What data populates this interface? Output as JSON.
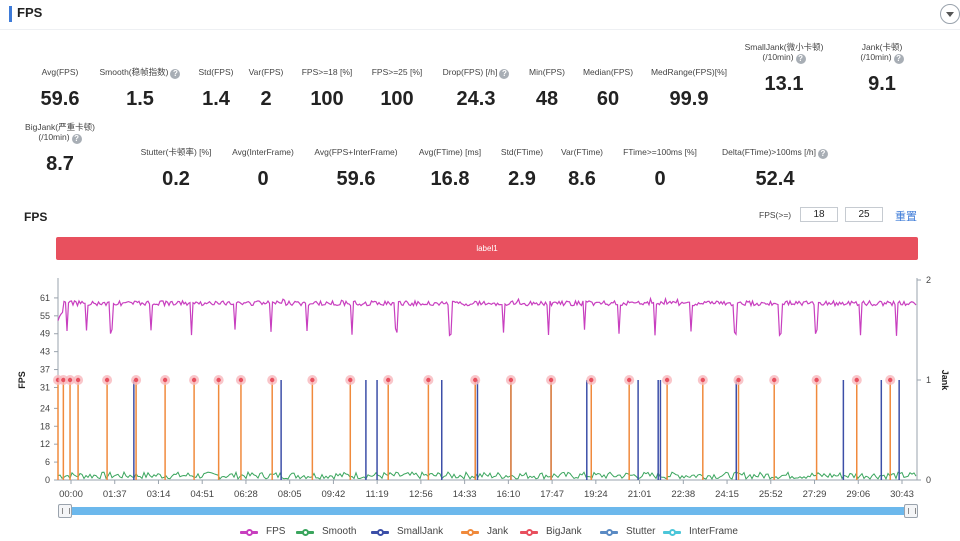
{
  "header": {
    "title": "FPS"
  },
  "metrics": [
    {
      "label": "Avg(FPS)",
      "value": "59.6",
      "help": false
    },
    {
      "label": "Smooth(稳帧指数)",
      "value": "1.5",
      "help": true
    },
    {
      "label": "Std(FPS)",
      "value": "1.4",
      "help": false
    },
    {
      "label": "Var(FPS)",
      "value": "2",
      "help": false
    },
    {
      "label": "FPS>=18 [%]",
      "value": "100",
      "help": false
    },
    {
      "label": "FPS>=25 [%]",
      "value": "100",
      "help": false
    },
    {
      "label": "Drop(FPS) [/h]",
      "value": "24.3",
      "help": true
    },
    {
      "label": "Min(FPS)",
      "value": "48",
      "help": false
    },
    {
      "label": "Median(FPS)",
      "value": "60",
      "help": false
    },
    {
      "label": "MedRange(FPS)[%]",
      "value": "99.9",
      "help": false
    },
    {
      "label": "SmallJank(微小卡顿)",
      "label2": "(/10min)",
      "value": "13.1",
      "help": true
    },
    {
      "label": "Jank(卡顿)",
      "label2": "(/10min)",
      "value": "9.1",
      "help": true
    },
    {
      "label": "BigJank(严重卡顿)",
      "label2": "(/10min)",
      "value": "8.7",
      "help": true
    },
    {
      "label": "Stutter(卡顿率) [%]",
      "value": "0.2",
      "help": false
    },
    {
      "label": "Avg(InterFrame)",
      "value": "0",
      "help": false
    },
    {
      "label": "Avg(FPS+InterFrame)",
      "value": "59.6",
      "help": false
    },
    {
      "label": "Avg(FTime) [ms]",
      "value": "16.8",
      "help": false
    },
    {
      "label": "Std(FTime)",
      "value": "2.9",
      "help": false
    },
    {
      "label": "Var(FTime)",
      "value": "8.6",
      "help": false
    },
    {
      "label": "FTime>=100ms [%]",
      "value": "0",
      "help": false
    },
    {
      "label": "Delta(FTime)>100ms [/h]",
      "value": "52.4",
      "help": true
    }
  ],
  "chart_section": {
    "title": "FPS",
    "threshold_label": "FPS(>=)",
    "threshold_low": "18",
    "threshold_high": "25",
    "reset_label": "重置",
    "band_label": "label1"
  },
  "chart_data": {
    "type": "line",
    "ylabel": "FPS",
    "y2label": "Jank",
    "yticks": [
      0,
      6,
      12,
      18,
      24,
      31,
      37,
      43,
      49,
      55,
      61
    ],
    "y_range": [
      0,
      67
    ],
    "y2ticks": [
      0,
      1,
      2
    ],
    "y2_range": [
      0,
      2
    ],
    "x_unit": "mm:ss",
    "xticks": [
      "00:00",
      "01:37",
      "03:14",
      "04:51",
      "06:28",
      "08:05",
      "09:42",
      "11:19",
      "12:56",
      "14:33",
      "16:10",
      "17:47",
      "19:24",
      "21:01",
      "22:38",
      "24:15",
      "25:52",
      "27:29",
      "29:06",
      "30:43"
    ],
    "x_range_seconds": [
      0,
      1925
    ],
    "fps_baseline": 60,
    "fps_min": 48,
    "fps_drop_times_seconds": [
      5,
      20,
      65,
      120,
      210,
      300,
      400,
      480,
      560,
      660,
      760,
      880,
      1000,
      1100,
      1180,
      1260,
      1340,
      1420,
      1520,
      1620,
      1700,
      1800,
      1880
    ],
    "bigjank_times_seconds": [
      0,
      12,
      27,
      45,
      110,
      175,
      240,
      305,
      360,
      410,
      480,
      570,
      655,
      740,
      830,
      935,
      1015,
      1105,
      1195,
      1280,
      1365,
      1445,
      1525,
      1605,
      1700,
      1790,
      1865
    ],
    "jank_times_seconds": [
      0,
      12,
      27,
      45,
      110,
      175,
      240,
      305,
      360,
      410,
      480,
      570,
      655,
      740,
      830,
      935,
      1015,
      1105,
      1195,
      1280,
      1365,
      1445,
      1525,
      1605,
      1700,
      1790,
      1865
    ],
    "smalljank_times_seconds": [
      170,
      500,
      715,
      690,
      935,
      940,
      860,
      1015,
      1105,
      1185,
      1300,
      1345,
      1350,
      1520,
      1760,
      1845,
      1885
    ],
    "jank_value": 1,
    "series": [
      {
        "name": "FPS",
        "color": "#c83fbf"
      },
      {
        "name": "Smooth",
        "color": "#3aa55d"
      },
      {
        "name": "SmallJank",
        "color": "#3c4fa8"
      },
      {
        "name": "Jank",
        "color": "#f08a3c"
      },
      {
        "name": "BigJank",
        "color": "#e8505e"
      },
      {
        "name": "Stutter",
        "color": "#5b8bc4"
      },
      {
        "name": "InterFrame",
        "color": "#4cc6d9"
      }
    ]
  }
}
